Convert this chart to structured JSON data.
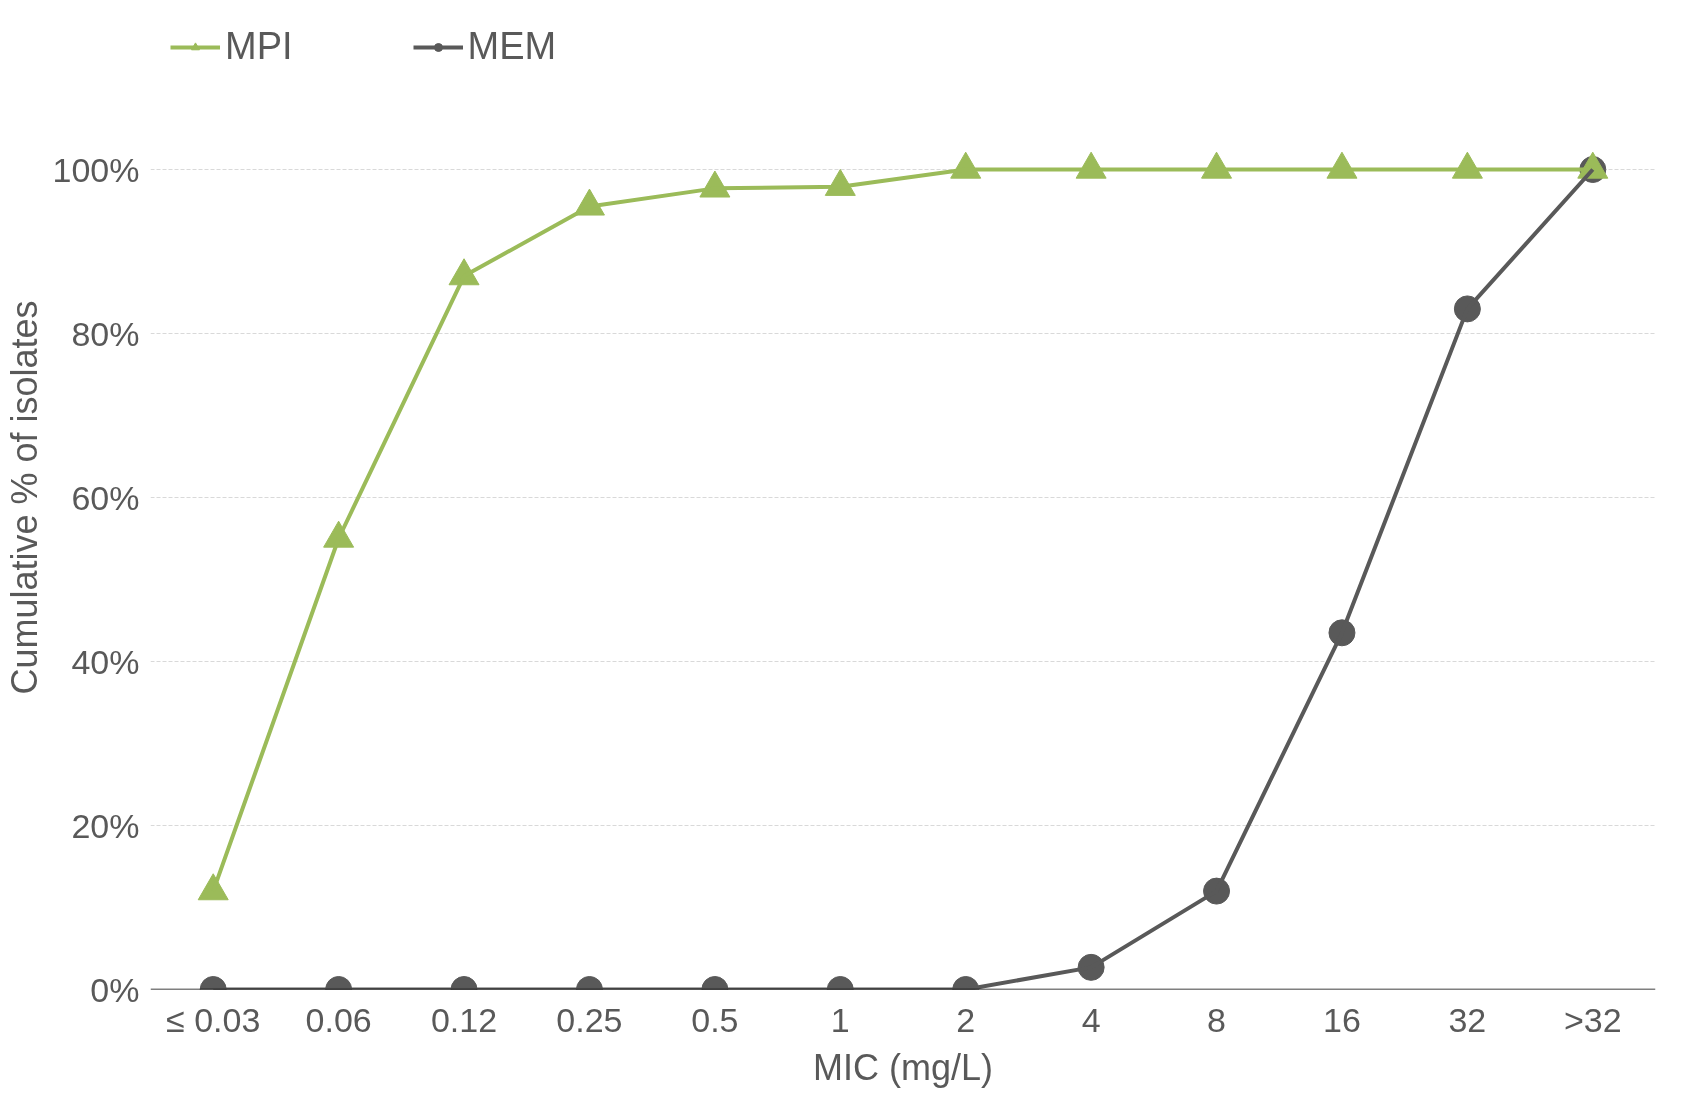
{
  "chart_data": {
    "type": "line",
    "xlabel": "MIC (mg/L)",
    "ylabel": "Cumulative % of isolates",
    "categories": [
      "≤ 0.03",
      "0.06",
      "0.12",
      "0.25",
      "0.5",
      "1",
      "2",
      "4",
      "8",
      "16",
      "32",
      ">32"
    ],
    "series": [
      {
        "name": "MPI",
        "color": "#9bbb59",
        "marker": "triangle",
        "values": [
          12,
          55,
          87,
          95.5,
          97.7,
          97.9,
          100,
          100,
          100,
          100,
          100,
          100
        ]
      },
      {
        "name": "MEM",
        "color": "#595959",
        "marker": "circle",
        "values": [
          0,
          0,
          0,
          0,
          0,
          0,
          0,
          2.7,
          12,
          43.5,
          83,
          100
        ]
      }
    ],
    "ylim": [
      0,
      100
    ],
    "yticks": [
      {
        "value": 0,
        "label": "0%"
      },
      {
        "value": 20,
        "label": "20%"
      },
      {
        "value": 40,
        "label": "40%"
      },
      {
        "value": 60,
        "label": "60%"
      },
      {
        "value": 80,
        "label": "80%"
      },
      {
        "value": 100,
        "label": "100%"
      }
    ],
    "grid": "y",
    "legend": "top left",
    "line_style": "solid"
  }
}
